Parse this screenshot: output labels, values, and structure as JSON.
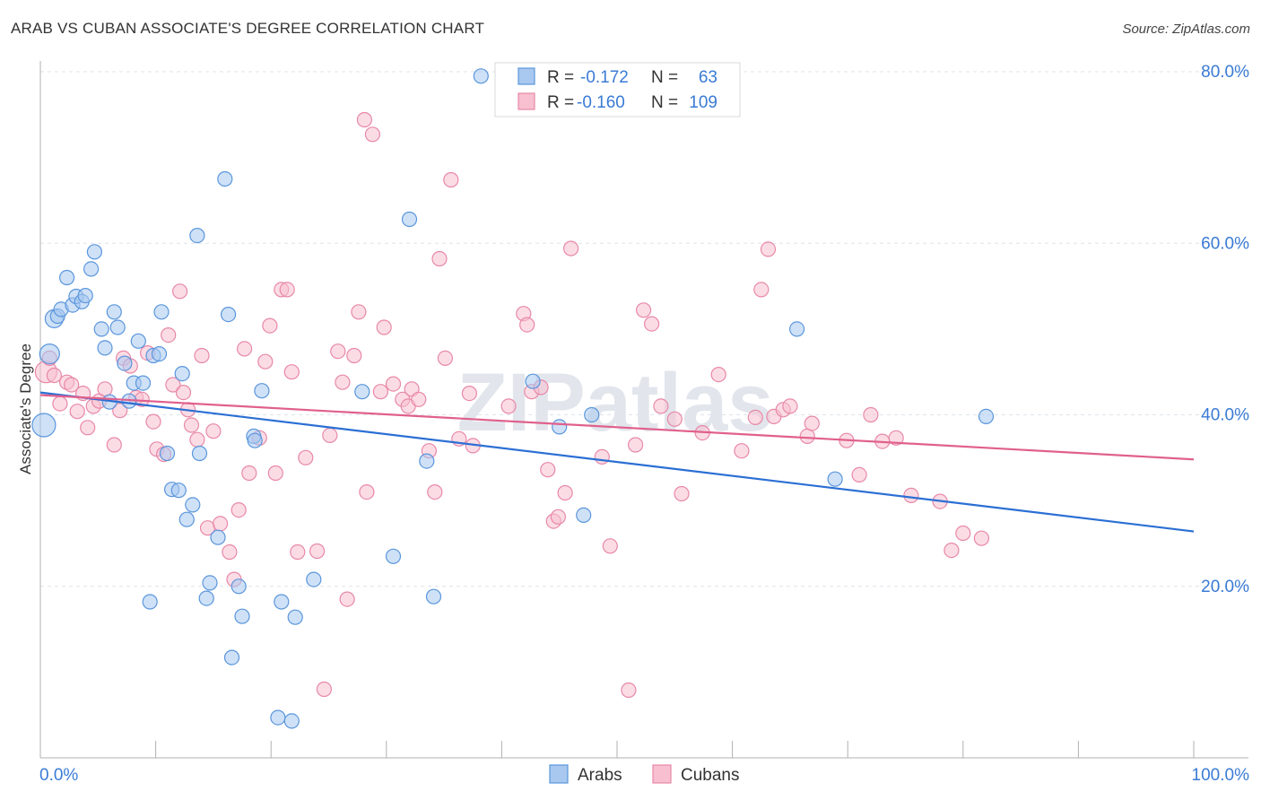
{
  "title": "ARAB VS CUBAN ASSOCIATE'S DEGREE CORRELATION CHART",
  "source": "Source: ZipAtlas.com",
  "watermark": "ZIPatlas",
  "colors": {
    "arab_fill": "#a8c8f0",
    "arab_stroke": "#5a96dc",
    "arab_line": "#2b6fd4",
    "cuban_fill": "#f8bfd0",
    "cuban_stroke": "#e888a8",
    "cuban_line": "#e0608c",
    "grid": "#dde3ea",
    "axis_text": "#3a7bd5",
    "axis": "#b0b0b0"
  },
  "legend_top": [
    {
      "series": "arabs",
      "r_label": "R =",
      "r_value": "-0.172",
      "n_label": "N =",
      "n_value": "63"
    },
    {
      "series": "cubans",
      "r_label": "R =",
      "r_value": "-0.160",
      "n_label": "N =",
      "n_value": "109"
    }
  ],
  "chart_data": {
    "type": "scatter",
    "title": "ARAB VS CUBAN ASSOCIATE'S DEGREE CORRELATION CHART",
    "xlabel": "",
    "ylabel": "Associate's Degree",
    "xlim": [
      0,
      100
    ],
    "ylim": [
      0,
      80
    ],
    "x_tick_labels": [
      "0.0%",
      "100.0%"
    ],
    "y_ticks": [
      20,
      40,
      60,
      80
    ],
    "y_tick_labels": [
      "20.0%",
      "40.0%",
      "60.0%",
      "80.0%"
    ],
    "legend": [
      "Arabs",
      "Cubans"
    ],
    "series": [
      {
        "name": "Arabs",
        "trend": {
          "x": [
            0,
            100
          ],
          "y": [
            42.6,
            26.4
          ]
        },
        "points": [
          {
            "x": 0.3,
            "y": 38.8,
            "r": 13
          },
          {
            "x": 0.8,
            "y": 47.1,
            "r": 11
          },
          {
            "x": 1.2,
            "y": 51.2,
            "r": 10
          },
          {
            "x": 1.5,
            "y": 51.5
          },
          {
            "x": 1.8,
            "y": 52.3
          },
          {
            "x": 2.3,
            "y": 56.0
          },
          {
            "x": 2.8,
            "y": 52.8
          },
          {
            "x": 3.1,
            "y": 53.8
          },
          {
            "x": 3.6,
            "y": 53.2
          },
          {
            "x": 3.9,
            "y": 53.9
          },
          {
            "x": 4.4,
            "y": 57.0
          },
          {
            "x": 4.7,
            "y": 59.0
          },
          {
            "x": 5.3,
            "y": 50.0
          },
          {
            "x": 5.6,
            "y": 47.8
          },
          {
            "x": 6.0,
            "y": 41.5
          },
          {
            "x": 6.4,
            "y": 52.0
          },
          {
            "x": 6.7,
            "y": 50.2
          },
          {
            "x": 7.3,
            "y": 46.0
          },
          {
            "x": 7.7,
            "y": 41.6
          },
          {
            "x": 8.1,
            "y": 43.7
          },
          {
            "x": 8.5,
            "y": 48.6
          },
          {
            "x": 8.9,
            "y": 43.7
          },
          {
            "x": 9.5,
            "y": 18.2
          },
          {
            "x": 9.8,
            "y": 46.9
          },
          {
            "x": 10.3,
            "y": 47.1
          },
          {
            "x": 10.5,
            "y": 52.0
          },
          {
            "x": 11.0,
            "y": 35.5
          },
          {
            "x": 11.4,
            "y": 31.3
          },
          {
            "x": 12.0,
            "y": 31.2
          },
          {
            "x": 12.3,
            "y": 44.8
          },
          {
            "x": 12.7,
            "y": 27.8
          },
          {
            "x": 13.2,
            "y": 29.5
          },
          {
            "x": 13.6,
            "y": 60.9
          },
          {
            "x": 13.8,
            "y": 35.5
          },
          {
            "x": 14.4,
            "y": 18.6
          },
          {
            "x": 14.7,
            "y": 20.4
          },
          {
            "x": 15.4,
            "y": 25.7
          },
          {
            "x": 16.0,
            "y": 67.5
          },
          {
            "x": 16.3,
            "y": 51.7
          },
          {
            "x": 16.6,
            "y": 11.7
          },
          {
            "x": 17.2,
            "y": 20.0
          },
          {
            "x": 17.5,
            "y": 16.5
          },
          {
            "x": 18.5,
            "y": 37.5
          },
          {
            "x": 18.6,
            "y": 37.0
          },
          {
            "x": 19.2,
            "y": 42.8
          },
          {
            "x": 20.6,
            "y": 4.7
          },
          {
            "x": 20.9,
            "y": 18.2
          },
          {
            "x": 21.8,
            "y": 4.3
          },
          {
            "x": 22.1,
            "y": 16.4
          },
          {
            "x": 23.7,
            "y": 20.8
          },
          {
            "x": 27.9,
            "y": 42.7
          },
          {
            "x": 30.6,
            "y": 23.5
          },
          {
            "x": 32.0,
            "y": 62.8
          },
          {
            "x": 33.5,
            "y": 34.6
          },
          {
            "x": 34.1,
            "y": 18.8
          },
          {
            "x": 38.2,
            "y": 79.5
          },
          {
            "x": 42.7,
            "y": 43.9
          },
          {
            "x": 45.0,
            "y": 38.6
          },
          {
            "x": 47.1,
            "y": 28.3
          },
          {
            "x": 47.8,
            "y": 40.0
          },
          {
            "x": 65.6,
            "y": 50.0
          },
          {
            "x": 68.9,
            "y": 32.5
          },
          {
            "x": 82.0,
            "y": 39.8
          }
        ]
      },
      {
        "name": "Cubans",
        "trend": {
          "x": [
            0,
            100
          ],
          "y": [
            42.3,
            34.8
          ]
        },
        "points": [
          {
            "x": 0.5,
            "y": 45.0,
            "r": 12
          },
          {
            "x": 0.8,
            "y": 46.6
          },
          {
            "x": 1.2,
            "y": 44.6
          },
          {
            "x": 1.7,
            "y": 41.3
          },
          {
            "x": 2.3,
            "y": 43.8
          },
          {
            "x": 2.7,
            "y": 43.5
          },
          {
            "x": 3.2,
            "y": 40.4
          },
          {
            "x": 3.7,
            "y": 42.5
          },
          {
            "x": 4.1,
            "y": 38.5
          },
          {
            "x": 4.6,
            "y": 41.0
          },
          {
            "x": 5.1,
            "y": 41.6
          },
          {
            "x": 5.6,
            "y": 43.0
          },
          {
            "x": 6.4,
            "y": 36.5
          },
          {
            "x": 6.9,
            "y": 40.5
          },
          {
            "x": 7.2,
            "y": 46.6
          },
          {
            "x": 7.8,
            "y": 45.7
          },
          {
            "x": 8.3,
            "y": 42.0
          },
          {
            "x": 8.8,
            "y": 41.8
          },
          {
            "x": 9.3,
            "y": 47.2
          },
          {
            "x": 9.8,
            "y": 39.2
          },
          {
            "x": 10.1,
            "y": 36.0
          },
          {
            "x": 10.7,
            "y": 35.4
          },
          {
            "x": 11.1,
            "y": 49.3
          },
          {
            "x": 11.5,
            "y": 43.5
          },
          {
            "x": 12.1,
            "y": 54.4
          },
          {
            "x": 12.4,
            "y": 42.6
          },
          {
            "x": 12.8,
            "y": 40.6
          },
          {
            "x": 13.1,
            "y": 38.8
          },
          {
            "x": 13.6,
            "y": 37.1
          },
          {
            "x": 14.0,
            "y": 46.9
          },
          {
            "x": 14.5,
            "y": 26.8
          },
          {
            "x": 15.0,
            "y": 38.1
          },
          {
            "x": 15.6,
            "y": 27.3
          },
          {
            "x": 16.4,
            "y": 24.0
          },
          {
            "x": 16.8,
            "y": 20.8
          },
          {
            "x": 17.2,
            "y": 28.9
          },
          {
            "x": 17.7,
            "y": 47.7
          },
          {
            "x": 18.1,
            "y": 33.2
          },
          {
            "x": 19.0,
            "y": 37.3
          },
          {
            "x": 19.5,
            "y": 46.2
          },
          {
            "x": 19.9,
            "y": 50.4
          },
          {
            "x": 20.4,
            "y": 33.2
          },
          {
            "x": 20.9,
            "y": 54.6
          },
          {
            "x": 21.4,
            "y": 54.6
          },
          {
            "x": 21.8,
            "y": 45.0
          },
          {
            "x": 22.3,
            "y": 24.0
          },
          {
            "x": 23.0,
            "y": 35.0
          },
          {
            "x": 24.0,
            "y": 24.1
          },
          {
            "x": 24.6,
            "y": 8.0
          },
          {
            "x": 25.1,
            "y": 37.6
          },
          {
            "x": 25.8,
            "y": 47.4
          },
          {
            "x": 26.2,
            "y": 43.8
          },
          {
            "x": 26.6,
            "y": 18.5
          },
          {
            "x": 27.2,
            "y": 46.9
          },
          {
            "x": 27.6,
            "y": 52.0
          },
          {
            "x": 28.1,
            "y": 74.4
          },
          {
            "x": 28.3,
            "y": 31.0
          },
          {
            "x": 28.8,
            "y": 72.7
          },
          {
            "x": 29.5,
            "y": 42.7
          },
          {
            "x": 29.8,
            "y": 50.2
          },
          {
            "x": 30.6,
            "y": 43.6
          },
          {
            "x": 31.4,
            "y": 41.8
          },
          {
            "x": 31.9,
            "y": 41.0
          },
          {
            "x": 32.2,
            "y": 43.0
          },
          {
            "x": 32.8,
            "y": 41.8
          },
          {
            "x": 33.7,
            "y": 35.8
          },
          {
            "x": 34.2,
            "y": 31.0
          },
          {
            "x": 34.6,
            "y": 58.2
          },
          {
            "x": 35.1,
            "y": 46.6
          },
          {
            "x": 35.6,
            "y": 67.4
          },
          {
            "x": 36.3,
            "y": 37.2
          },
          {
            "x": 37.5,
            "y": 36.4
          },
          {
            "x": 37.2,
            "y": 42.5
          },
          {
            "x": 40.6,
            "y": 41.0
          },
          {
            "x": 41.9,
            "y": 51.8
          },
          {
            "x": 42.2,
            "y": 50.5
          },
          {
            "x": 42.6,
            "y": 42.7
          },
          {
            "x": 43.4,
            "y": 43.2
          },
          {
            "x": 44.0,
            "y": 33.6
          },
          {
            "x": 44.5,
            "y": 27.6
          },
          {
            "x": 44.9,
            "y": 28.1
          },
          {
            "x": 45.5,
            "y": 30.9
          },
          {
            "x": 46.0,
            "y": 59.4
          },
          {
            "x": 48.7,
            "y": 35.1
          },
          {
            "x": 49.4,
            "y": 24.7
          },
          {
            "x": 51.0,
            "y": 7.9
          },
          {
            "x": 51.6,
            "y": 36.5
          },
          {
            "x": 52.3,
            "y": 52.2
          },
          {
            "x": 53.0,
            "y": 50.6
          },
          {
            "x": 53.8,
            "y": 41.0
          },
          {
            "x": 55.0,
            "y": 39.5
          },
          {
            "x": 55.6,
            "y": 30.8
          },
          {
            "x": 57.4,
            "y": 37.9
          },
          {
            "x": 58.8,
            "y": 44.7
          },
          {
            "x": 60.8,
            "y": 35.8
          },
          {
            "x": 62.0,
            "y": 39.7
          },
          {
            "x": 62.5,
            "y": 54.6
          },
          {
            "x": 63.1,
            "y": 59.3
          },
          {
            "x": 63.6,
            "y": 39.8
          },
          {
            "x": 64.4,
            "y": 40.6
          },
          {
            "x": 65.0,
            "y": 41.0
          },
          {
            "x": 66.5,
            "y": 37.5
          },
          {
            "x": 66.9,
            "y": 39.0
          },
          {
            "x": 69.9,
            "y": 37.0
          },
          {
            "x": 71.0,
            "y": 33.0
          },
          {
            "x": 72.0,
            "y": 40.0
          },
          {
            "x": 73.0,
            "y": 36.9
          },
          {
            "x": 74.2,
            "y": 37.3
          },
          {
            "x": 75.5,
            "y": 30.6
          },
          {
            "x": 78.0,
            "y": 29.9
          },
          {
            "x": 79.0,
            "y": 24.2
          },
          {
            "x": 80.0,
            "y": 26.2
          },
          {
            "x": 81.6,
            "y": 25.6
          }
        ]
      }
    ]
  },
  "legend_bottom": [
    {
      "series": "arabs",
      "label": "Arabs"
    },
    {
      "series": "cubans",
      "label": "Cubans"
    }
  ]
}
